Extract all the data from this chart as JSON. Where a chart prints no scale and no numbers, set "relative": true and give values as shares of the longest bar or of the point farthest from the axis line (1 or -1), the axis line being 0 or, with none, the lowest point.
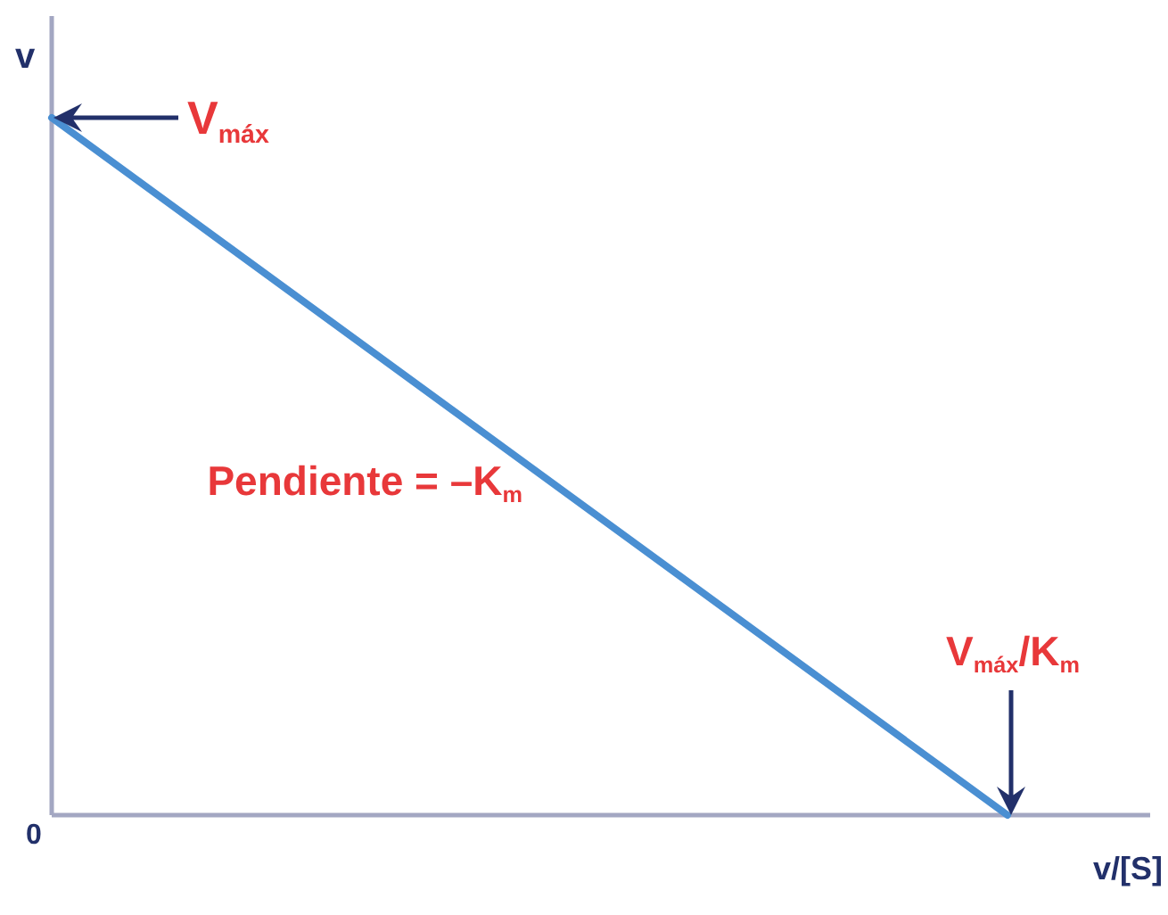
{
  "chart_data": {
    "type": "line",
    "relative": true,
    "categories": [
      null,
      null
    ],
    "series": [
      {
        "color": "#4a8fd2",
        "values": [
          1,
          0
        ]
      }
    ],
    "ylabel": "v",
    "xlabel": "v/[S]",
    "annotations": [
      "V$_{máx}$",
      "Pendiente = –K$_{m}$",
      "V$_{máx}$/K$_{m}$",
      "0"
    ]
  }
}
